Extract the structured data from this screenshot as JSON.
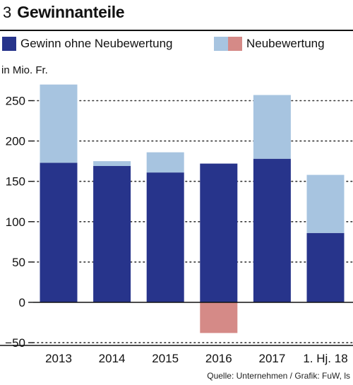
{
  "figure": {
    "number": "3",
    "title": "Gewinnanteile",
    "unit": "in Mio. Fr.",
    "source": "Quelle: Unternehmen / Grafik: FuW, ls"
  },
  "legend": {
    "item1": {
      "label": "Gewinn ohne Neubewertung",
      "color": "#27348b"
    },
    "item2": {
      "label": "Neubewertung",
      "colors": [
        "#a7c4e0",
        "#d58a87"
      ]
    }
  },
  "colors": {
    "gewinn": "#27348b",
    "neubewertung_pos": "#a7c4e0",
    "neubewertung_neg": "#d58a87",
    "grid": "#333333"
  },
  "chart_data": {
    "type": "bar",
    "stacked": true,
    "categories": [
      "2013",
      "2014",
      "2015",
      "2016",
      "2017",
      "1. Hj. 18"
    ],
    "series": [
      {
        "name": "Gewinn ohne Neubewertung",
        "values": [
          173,
          169,
          161,
          172,
          178,
          86
        ]
      },
      {
        "name": "Neubewertung",
        "values": [
          97,
          6,
          25,
          -38,
          79,
          72
        ]
      }
    ],
    "yticks": [
      -50,
      0,
      50,
      100,
      150,
      200,
      250
    ],
    "ylim": [
      -50,
      280
    ],
    "ylabel": "in Mio. Fr.",
    "grid": "dotted",
    "legend_position": "top"
  }
}
